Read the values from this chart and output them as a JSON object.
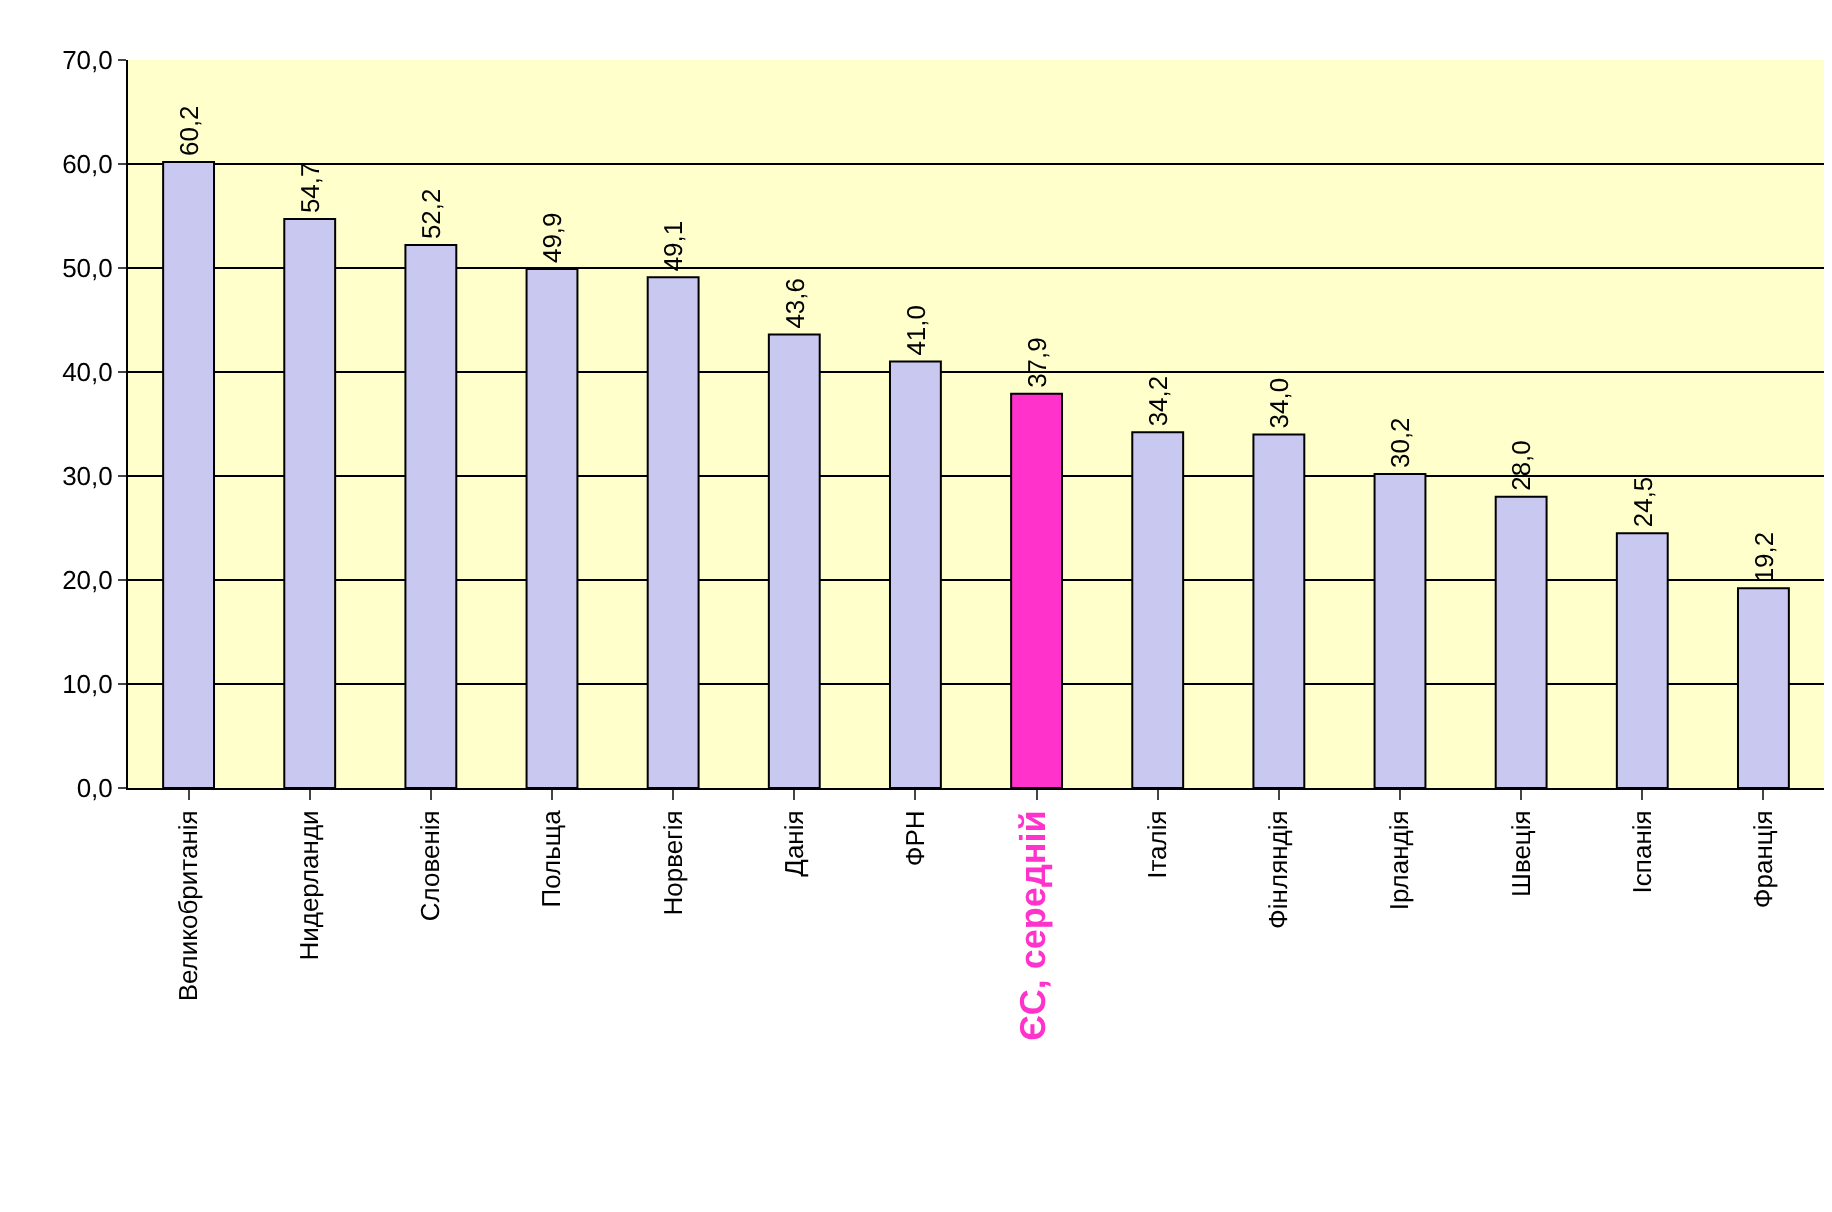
{
  "chart_data": {
    "type": "bar",
    "categories": [
      "Великобританія",
      "Нидерланди",
      "Словенія",
      "Польща",
      "Норвегія",
      "Данія",
      "ФРН",
      "ЄС, середній",
      "Італія",
      "Фінляндія",
      "Ірландія",
      "Швеція",
      "Іспанія",
      "Франція"
    ],
    "values": [
      60.2,
      54.7,
      52.2,
      49.9,
      49.1,
      43.6,
      41.0,
      37.9,
      34.2,
      34.0,
      30.2,
      28.0,
      24.5,
      19.2
    ],
    "value_labels": [
      "60,2",
      "54,7",
      "52,2",
      "49,9",
      "49,1",
      "43,6",
      "41,0",
      "37,9",
      "34,2",
      "34,0",
      "30,2",
      "28,0",
      "24,5",
      "19,2"
    ],
    "colors": [
      "#c8c8f0",
      "#c8c8f0",
      "#c8c8f0",
      "#c8c8f0",
      "#c8c8f0",
      "#c8c8f0",
      "#c8c8f0",
      "#ff33cc",
      "#c8c8f0",
      "#c8c8f0",
      "#c8c8f0",
      "#c8c8f0",
      "#c8c8f0",
      "#c8c8f0"
    ],
    "ylim": [
      0,
      70
    ],
    "yticks": [
      {
        "value": 0,
        "label": "0,0"
      },
      {
        "value": 10,
        "label": "10,0"
      },
      {
        "value": 20,
        "label": "20,0"
      },
      {
        "value": 30,
        "label": "30,0"
      },
      {
        "value": 40,
        "label": "40,0"
      },
      {
        "value": 50,
        "label": "50,0"
      },
      {
        "value": 60,
        "label": "60,0"
      },
      {
        "value": 70,
        "label": "70,0"
      }
    ],
    "grid": "y",
    "legend": false
  }
}
